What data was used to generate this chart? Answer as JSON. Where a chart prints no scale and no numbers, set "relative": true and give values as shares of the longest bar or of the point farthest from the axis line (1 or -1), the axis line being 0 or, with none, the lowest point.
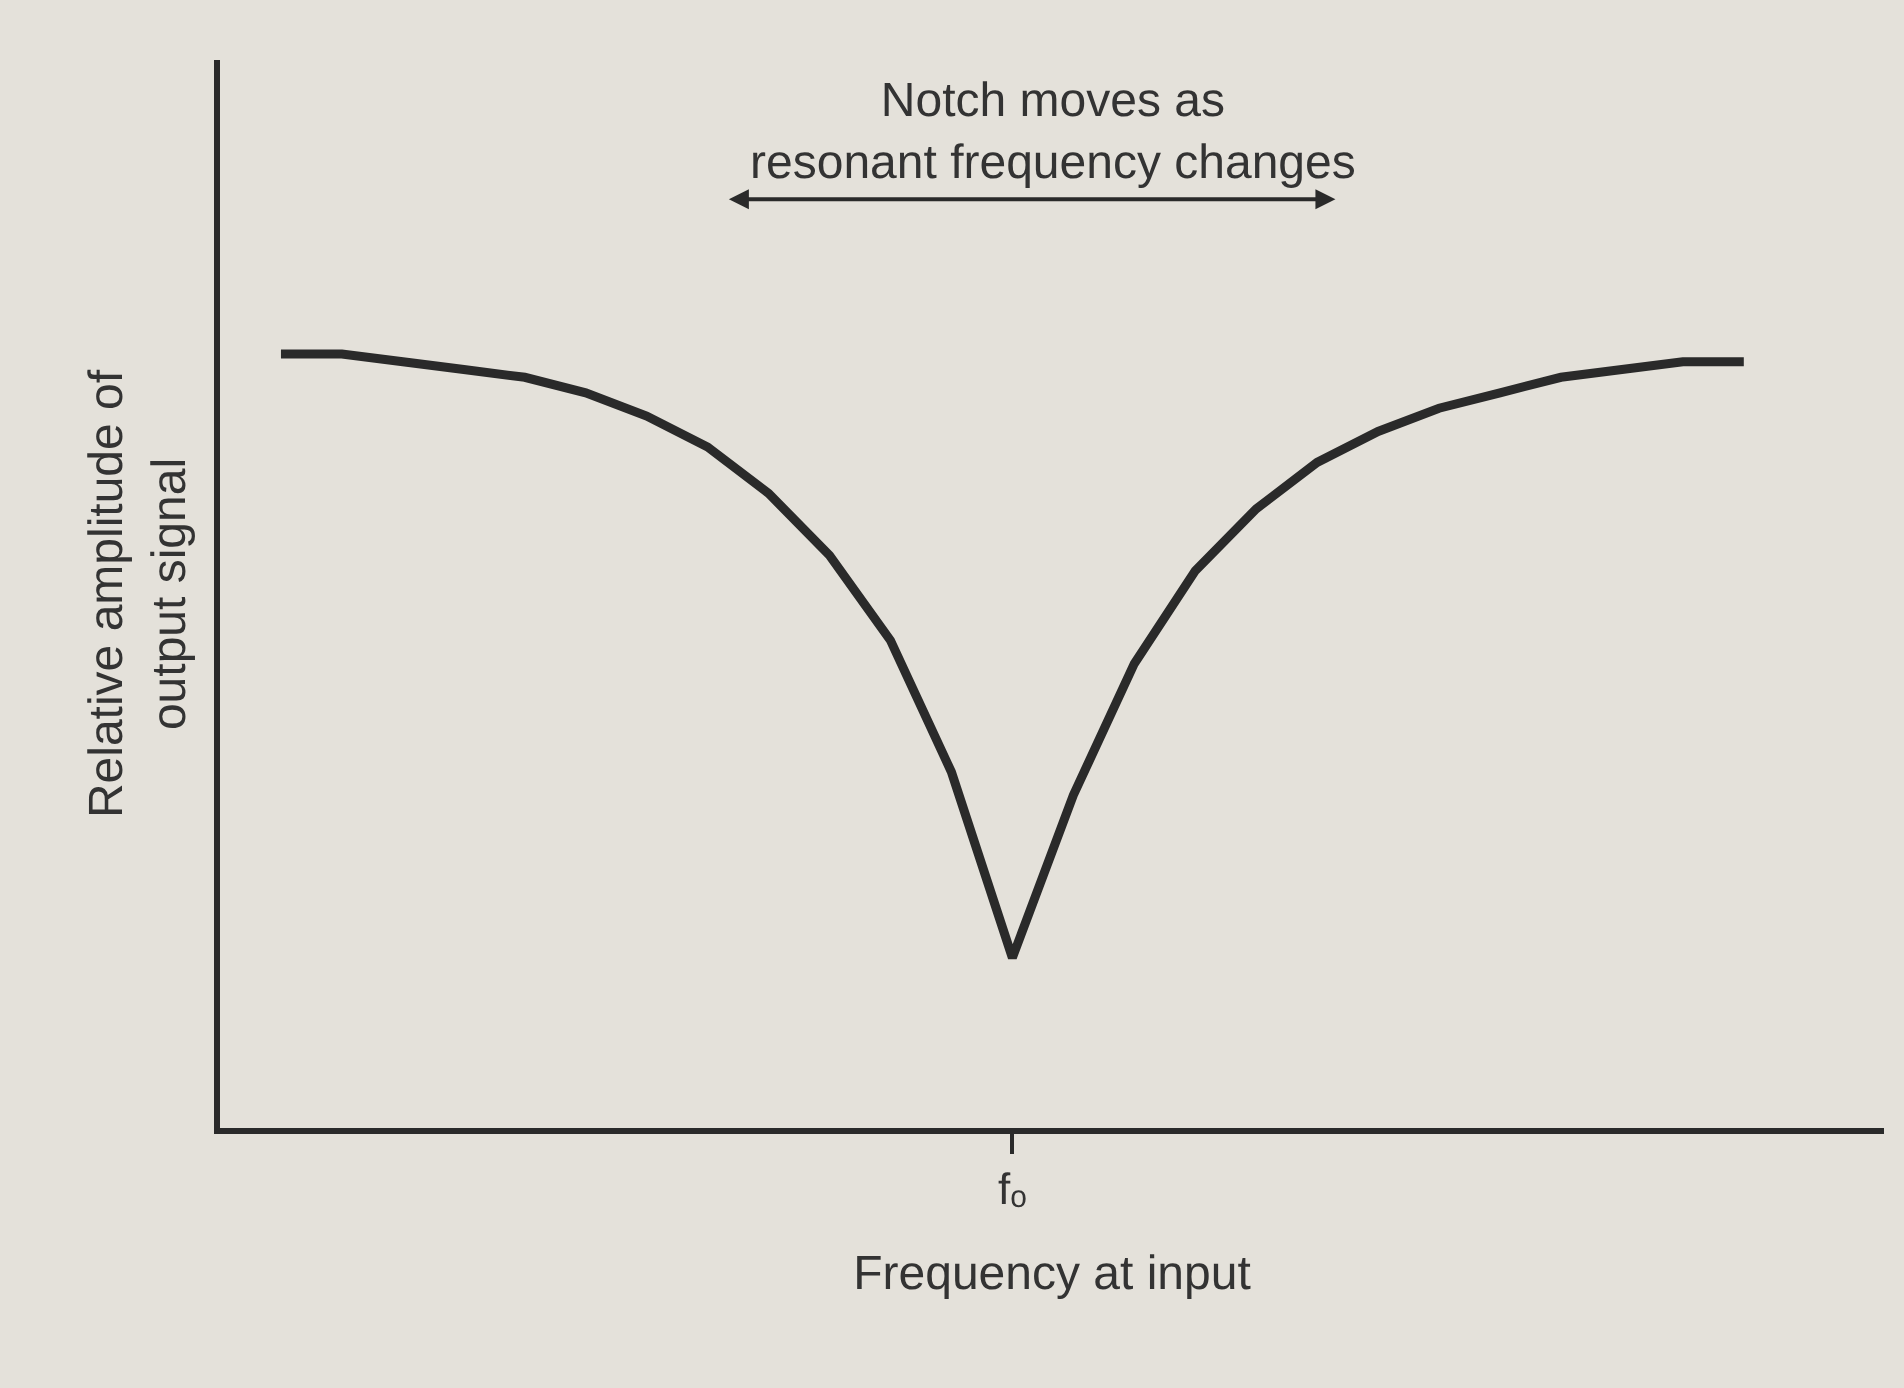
{
  "chart_data": {
    "type": "line",
    "relative": true,
    "xlabel": "Frequency at input",
    "ylabel": "Relative amplitude of\noutput signal",
    "categories": [
      null,
      null,
      null,
      null,
      null,
      null,
      null,
      null,
      null,
      null,
      null,
      null,
      null,
      null,
      null,
      null,
      null,
      null,
      null,
      null,
      null,
      null,
      null,
      null,
      null
    ],
    "series": [
      {
        "color": "#2a2a2a",
        "values": [
          1.0,
          1.0,
          0.99,
          0.98,
          0.97,
          0.95,
          0.92,
          0.88,
          0.82,
          0.74,
          0.63,
          0.46,
          0.22,
          0.43,
          0.6,
          0.72,
          0.8,
          0.86,
          0.9,
          0.93,
          0.95,
          0.97,
          0.98,
          0.99,
          0.99
        ]
      }
    ],
    "annotations": [
      "Notch moves as\nresonant frequency changes",
      "fₒ"
    ],
    "grid": false,
    "marker": "none",
    "line_style": "solid"
  }
}
